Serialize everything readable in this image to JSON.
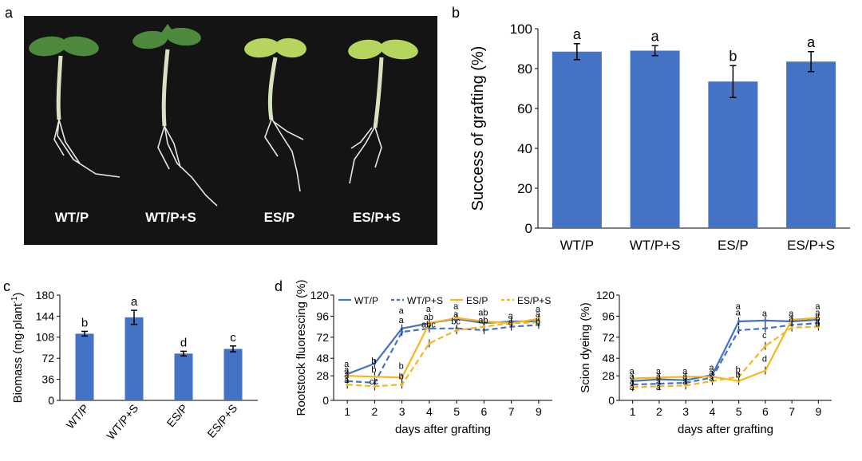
{
  "colors": {
    "blue": "#4472C4",
    "gold": "#F7B71B",
    "bar": "#4472C4",
    "photo_bg": "#141414",
    "cotyledon_green": "#4E8A3E",
    "cotyledon_yellow": "#B7D45F",
    "stem": "#D7E3BE",
    "root": "#E8E8E0"
  },
  "panels": {
    "a": {
      "letter": "a",
      "labels": [
        "WT/P",
        "WT/P+S",
        "ES/P",
        "ES/P+S"
      ]
    },
    "b": {
      "letter": "b"
    },
    "c": {
      "letter": "c"
    },
    "d": {
      "letter": "d"
    }
  },
  "chart_data": [
    {
      "id": "b",
      "type": "bar",
      "title": "",
      "xlabel": "",
      "ylabel": "Success of grafting (%)",
      "categories": [
        "WT/P",
        "WT/P+S",
        "ES/P",
        "ES/P+S"
      ],
      "values": [
        88.5,
        89,
        73.5,
        83.5
      ],
      "errors": [
        4,
        2.5,
        8,
        5
      ],
      "letters": [
        "a",
        "a",
        "b",
        "a"
      ],
      "ylim": [
        0,
        100
      ],
      "yticks": [
        0,
        20,
        40,
        60,
        80,
        100
      ]
    },
    {
      "id": "c",
      "type": "bar",
      "title": "",
      "xlabel": "",
      "ylabel": "Biomass (mg·plant⁻¹)",
      "ylabel_main": "Biomass (mg·plant",
      "ylabel_sup": "-1",
      "ylabel_tail": ")",
      "categories": [
        "WT/P",
        "WT/P+S",
        "ES/P",
        "ES/P+S"
      ],
      "values": [
        114,
        142,
        80,
        88
      ],
      "errors": [
        4,
        12,
        4,
        5
      ],
      "letters": [
        "b",
        "a",
        "d",
        "c"
      ],
      "ylim": [
        0,
        180
      ],
      "yticks": [
        0,
        36,
        72,
        108,
        144,
        180
      ]
    },
    {
      "id": "d1",
      "type": "line",
      "title": "",
      "xlabel": "days after grafting",
      "ylabel": "Rootstock fluorescing (%)",
      "x": [
        1,
        2,
        3,
        4,
        5,
        6,
        7,
        9
      ],
      "xticks": [
        1,
        2,
        3,
        4,
        5,
        6,
        7,
        9
      ],
      "ylim": [
        0,
        120
      ],
      "yticks": [
        0,
        28,
        48,
        72,
        96,
        120
      ],
      "legend": [
        "WT/P",
        "WT/P+S",
        "ES/P",
        "ES/P+S"
      ],
      "series": [
        {
          "name": "WT/P",
          "color": "blue",
          "dash": false,
          "values": [
            30,
            42,
            82,
            88,
            93,
            88,
            90,
            90
          ]
        },
        {
          "name": "WT/P+S",
          "color": "blue",
          "dash": true,
          "values": [
            22,
            20,
            78,
            82,
            82,
            80,
            84,
            86
          ]
        },
        {
          "name": "ES/P",
          "color": "gold",
          "dash": false,
          "values": [
            28,
            27,
            26,
            88,
            94,
            90,
            88,
            93
          ]
        },
        {
          "name": "ES/P+S",
          "color": "gold",
          "dash": true,
          "values": [
            18,
            16,
            18,
            65,
            80,
            84,
            88,
            89
          ]
        }
      ],
      "annotations": [
        {
          "x": 1,
          "y": 38,
          "text": "a"
        },
        {
          "x": 1,
          "y": 32,
          "text": "a"
        },
        {
          "x": 1,
          "y": 26,
          "text": "a"
        },
        {
          "x": 1,
          "y": 20,
          "text": "a"
        },
        {
          "x": 2,
          "y": 42,
          "text": "b"
        },
        {
          "x": 2,
          "y": 32,
          "text": "b"
        },
        {
          "x": 2,
          "y": 18,
          "text": "cc"
        },
        {
          "x": 3,
          "y": 99,
          "text": "a"
        },
        {
          "x": 3,
          "y": 88,
          "text": "a"
        },
        {
          "x": 3,
          "y": 36,
          "text": "b"
        },
        {
          "x": 3,
          "y": 24,
          "text": "b"
        },
        {
          "x": 4,
          "y": 101,
          "text": "a"
        },
        {
          "x": 4,
          "y": 92,
          "text": "ab"
        },
        {
          "x": 4,
          "y": 83,
          "text": "abc"
        },
        {
          "x": 5,
          "y": 104,
          "text": "a"
        },
        {
          "x": 5,
          "y": 95,
          "text": "a"
        },
        {
          "x": 5,
          "y": 87,
          "text": "bc"
        },
        {
          "x": 6,
          "y": 97,
          "text": "ab"
        },
        {
          "x": 6,
          "y": 88,
          "text": "ab"
        },
        {
          "x": 7,
          "y": 93,
          "text": "a"
        },
        {
          "x": 7,
          "y": 86,
          "text": "a"
        },
        {
          "x": 9,
          "y": 101,
          "text": "a"
        },
        {
          "x": 9,
          "y": 95,
          "text": "a"
        },
        {
          "x": 9,
          "y": 87,
          "text": "b"
        }
      ]
    },
    {
      "id": "d2",
      "type": "line",
      "title": "",
      "xlabel": "days after grafting",
      "ylabel": "Scion dyeing (%)",
      "x": [
        1,
        2,
        3,
        4,
        5,
        6,
        7,
        9
      ],
      "xticks": [
        1,
        2,
        3,
        4,
        5,
        6,
        7,
        9
      ],
      "ylim": [
        0,
        120
      ],
      "yticks": [
        0,
        28,
        48,
        72,
        96,
        120
      ],
      "series": [
        {
          "name": "WT/P",
          "color": "blue",
          "dash": false,
          "values": [
            22,
            24,
            23,
            29,
            90,
            91,
            90,
            92
          ]
        },
        {
          "name": "WT/P+S",
          "color": "blue",
          "dash": true,
          "values": [
            18,
            19,
            20,
            26,
            80,
            82,
            86,
            88
          ]
        },
        {
          "name": "ES/P",
          "color": "gold",
          "dash": false,
          "values": [
            25,
            26,
            27,
            27,
            22,
            34,
            92,
            94
          ]
        },
        {
          "name": "ES/P+S",
          "color": "gold",
          "dash": true,
          "values": [
            15,
            16,
            17,
            22,
            27,
            62,
            83,
            84
          ]
        }
      ],
      "annotations": [
        {
          "x": 1,
          "y": 30,
          "text": "a"
        },
        {
          "x": 1,
          "y": 24,
          "text": "a"
        },
        {
          "x": 1,
          "y": 18,
          "text": "a"
        },
        {
          "x": 1,
          "y": 12,
          "text": "a"
        },
        {
          "x": 2,
          "y": 30,
          "text": "a"
        },
        {
          "x": 2,
          "y": 24,
          "text": "a"
        },
        {
          "x": 2,
          "y": 18,
          "text": "a"
        },
        {
          "x": 2,
          "y": 12,
          "text": "a"
        },
        {
          "x": 3,
          "y": 30,
          "text": "a"
        },
        {
          "x": 3,
          "y": 24,
          "text": "a"
        },
        {
          "x": 3,
          "y": 18,
          "text": "a"
        },
        {
          "x": 4,
          "y": 34,
          "text": "a"
        },
        {
          "x": 4,
          "y": 28,
          "text": "a"
        },
        {
          "x": 4,
          "y": 22,
          "text": "a"
        },
        {
          "x": 5,
          "y": 104,
          "text": "a"
        },
        {
          "x": 5,
          "y": 97,
          "text": "a"
        },
        {
          "x": 5,
          "y": 32,
          "text": "b"
        },
        {
          "x": 5,
          "y": 26,
          "text": "b"
        },
        {
          "x": 6,
          "y": 96,
          "text": "a"
        },
        {
          "x": 6,
          "y": 71,
          "text": "c"
        },
        {
          "x": 6,
          "y": 44,
          "text": "d"
        },
        {
          "x": 7,
          "y": 96,
          "text": "a"
        },
        {
          "x": 7,
          "y": 90,
          "text": "a"
        },
        {
          "x": 9,
          "y": 104,
          "text": "a"
        },
        {
          "x": 9,
          "y": 97,
          "text": "a"
        },
        {
          "x": 9,
          "y": 90,
          "text": "b"
        },
        {
          "x": 9,
          "y": 84,
          "text": "b"
        }
      ]
    }
  ]
}
